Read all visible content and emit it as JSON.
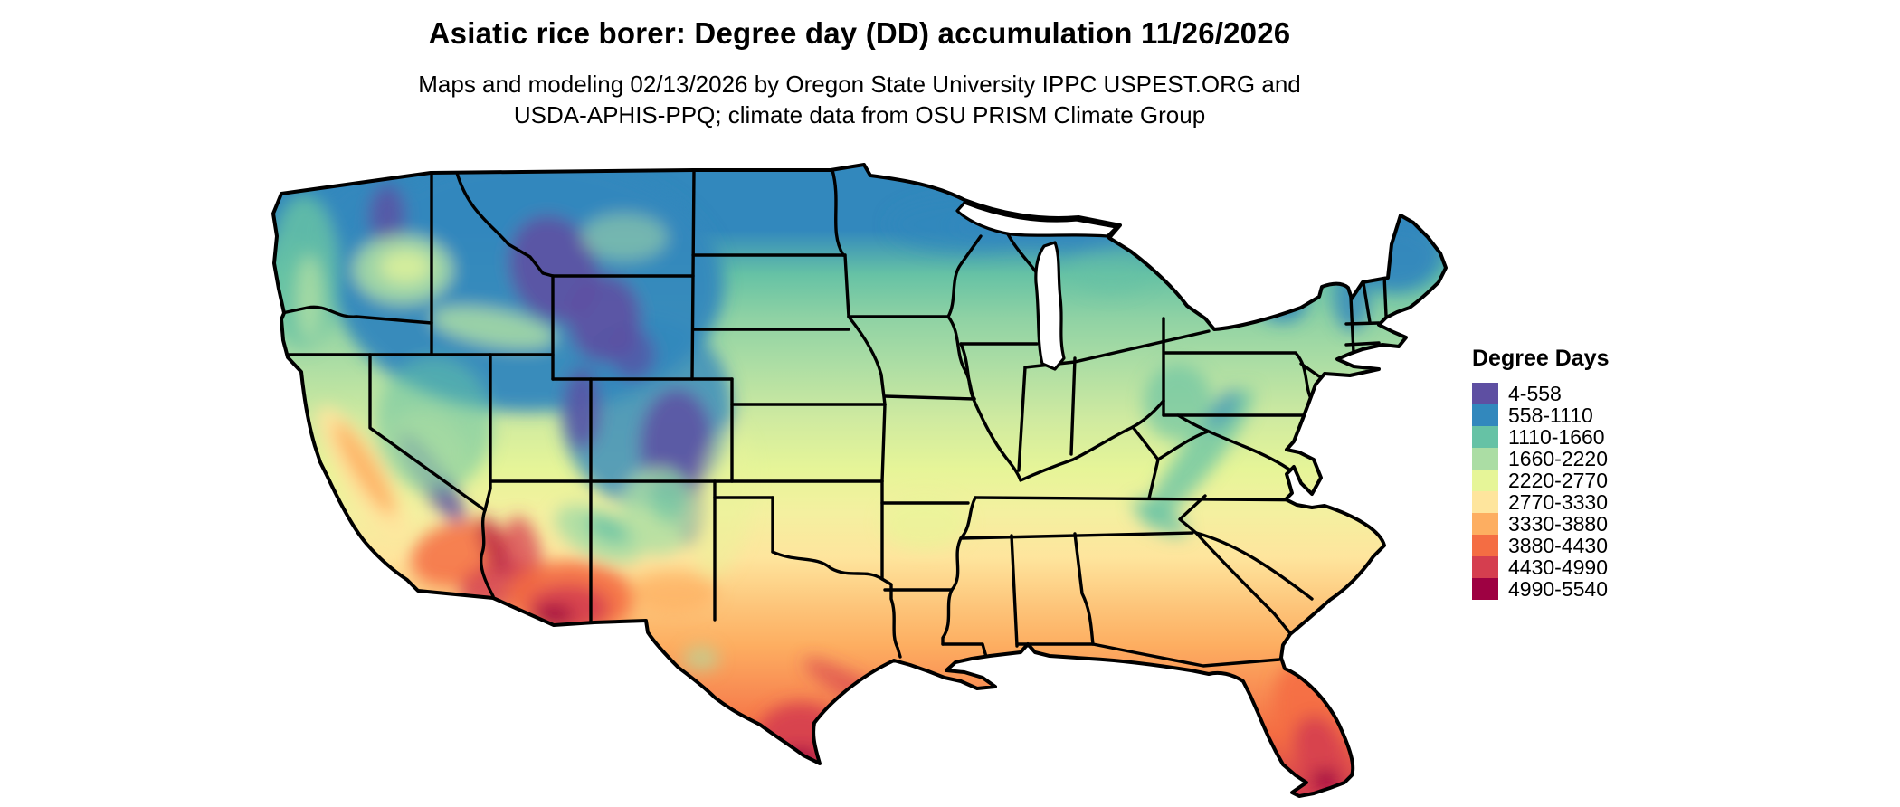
{
  "header": {
    "title": "Asiatic rice borer: Degree day (DD) accumulation 11/26/2026",
    "subtitle_line1": "Maps and modeling 02/13/2026 by Oregon State University IPPC USPEST.ORG and",
    "subtitle_line2": "USDA-APHIS-PPQ; climate data from OSU PRISM Climate Group"
  },
  "legend": {
    "title": "Degree Days",
    "items": [
      {
        "label": "4-558",
        "color": "#5e4fa2"
      },
      {
        "label": "558-1110",
        "color": "#3288bd"
      },
      {
        "label": "1110-1660",
        "color": "#66c2a5"
      },
      {
        "label": "1660-2220",
        "color": "#abdda4"
      },
      {
        "label": "2220-2770",
        "color": "#e6f598"
      },
      {
        "label": "2770-3330",
        "color": "#fee59d"
      },
      {
        "label": "3330-3880",
        "color": "#fdae61"
      },
      {
        "label": "3880-4430",
        "color": "#f46d43"
      },
      {
        "label": "4430-4990",
        "color": "#d53e4f"
      },
      {
        "label": "4990-5540",
        "color": "#9e0142"
      }
    ]
  },
  "chart_data": {
    "type": "choropleth_map",
    "region": "Contiguous United States",
    "variable": "Degree day (DD) accumulation for Asiatic rice borer",
    "map_date": "11/26/2026",
    "modeling_date": "02/13/2026",
    "source": "Oregon State University IPPC USPEST.ORG and USDA-APHIS-PPQ; climate data from OSU PRISM Climate Group",
    "legend_title": "Degree Days",
    "bins": [
      {
        "range": "4-558",
        "color": "#5e4fa2"
      },
      {
        "range": "558-1110",
        "color": "#3288bd"
      },
      {
        "range": "1110-1660",
        "color": "#66c2a5"
      },
      {
        "range": "1660-2220",
        "color": "#abdda4"
      },
      {
        "range": "2220-2770",
        "color": "#e6f598"
      },
      {
        "range": "2770-3330",
        "color": "#fee59d"
      },
      {
        "range": "3330-3880",
        "color": "#fdae61"
      },
      {
        "range": "3880-4430",
        "color": "#f46d43"
      },
      {
        "range": "4430-4990",
        "color": "#d53e4f"
      },
      {
        "range": "4990-5540",
        "color": "#9e0142"
      }
    ],
    "spatial_pattern": [
      "Lowest accumulation (4-1110 DD, purple/blue): northern Rockies, Cascades, Sierra Nevada, Yellowstone, Colorado Rockies, northern Minnesota/Wisconsin/Michigan, Adirondacks and Maine",
      "Mid values (1110-2220 DD, teal/green): Pacific Northwest lowlands, Great Basin, northern plains, Great Lakes states, New England, Appalachians",
      "2220-3330 DD (pale yellow/cream): central plains Kansas-Missouri, Ohio Valley, mid-Atlantic, California Central Valley",
      "3330-4430 DD (orange): Oklahoma, north Texas, Gulf states, Georgia, Carolinas coastal plain, northern Florida",
      "Highest values (4430-5540 DD, red/maroon): southern Texas, southwestern Arizona / southeastern California deserts, southern Florida"
    ]
  }
}
